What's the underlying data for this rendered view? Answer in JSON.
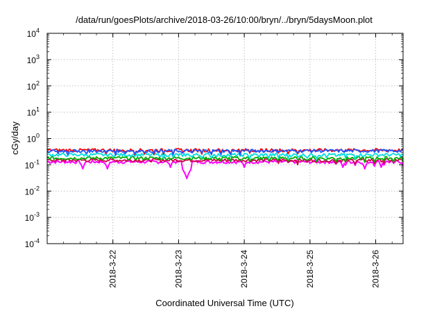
{
  "chart_data": {
    "type": "line",
    "title": "/data/run/goesPlots/archive/2018-03-26/10:00/bryn/../bryn/5daysMoon.plot",
    "xlabel": "Coordinated Universal Time (UTC)",
    "ylabel": "cGy/day",
    "yscale": "log",
    "ylim": [
      0.0001,
      10000
    ],
    "y_ticks": [
      {
        "value": 0.0001,
        "base": "10",
        "exp": "-4"
      },
      {
        "value": 0.001,
        "base": "10",
        "exp": "-3"
      },
      {
        "value": 0.01,
        "base": "10",
        "exp": "-2"
      },
      {
        "value": 0.1,
        "base": "10",
        "exp": "-1"
      },
      {
        "value": 1,
        "base": "10",
        "exp": "0"
      },
      {
        "value": 10,
        "base": "10",
        "exp": "1"
      },
      {
        "value": 100,
        "base": "10",
        "exp": "2"
      },
      {
        "value": 1000,
        "base": "10",
        "exp": "3"
      },
      {
        "value": 10000,
        "base": "10",
        "exp": "4"
      }
    ],
    "xlim": [
      "2018-03-21 00:00",
      "2018-03-26 10:00"
    ],
    "x_ticks": [
      "2018-3-22",
      "2018-3-23",
      "2018-3-24",
      "2018-3-25",
      "2018-3-26"
    ],
    "grid": true,
    "series": [
      {
        "color": "#ff00ff",
        "level": 0.13,
        "dips": [
          {
            "x": "2018-03-21 13:00",
            "y": 0.07
          },
          {
            "x": "2018-03-21 22:00",
            "y": 0.07
          },
          {
            "x": "2018-03-22 21:00",
            "y": 0.08
          },
          {
            "x": "2018-03-23 03:00",
            "y": 0.03
          },
          {
            "x": "2018-03-24 00:00",
            "y": 0.08
          },
          {
            "x": "2018-03-25 12:00",
            "y": 0.08
          },
          {
            "x": "2018-03-25 20:00",
            "y": 0.07
          },
          {
            "x": "2018-03-26 02:00",
            "y": 0.08
          }
        ]
      },
      {
        "color": "#cc0044",
        "level": 0.15,
        "dips": []
      },
      {
        "color": "#00aa00",
        "level": 0.18,
        "dips": []
      },
      {
        "color": "#00dddd",
        "level": 0.24,
        "dips": []
      },
      {
        "color": "#ff0000",
        "level": 0.36,
        "dips": []
      },
      {
        "color": "#2255ff",
        "level": 0.34,
        "dips": []
      }
    ]
  }
}
